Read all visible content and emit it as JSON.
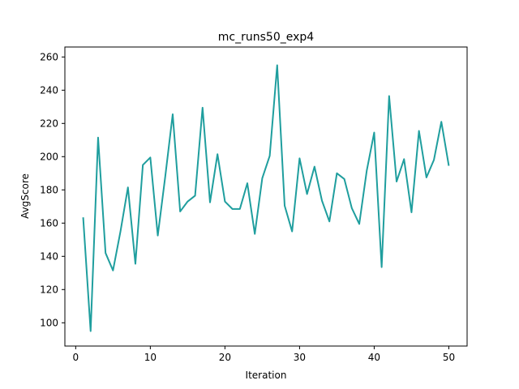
{
  "chart_data": {
    "type": "line",
    "title": "mc_runs50_exp4",
    "xlabel": "Iteration",
    "ylabel": "AvgScore",
    "xlim": [
      -1.45,
      52.45
    ],
    "ylim": [
      86,
      266
    ],
    "x_ticks": [
      0,
      10,
      20,
      30,
      40,
      50
    ],
    "y_ticks": [
      100,
      120,
      140,
      160,
      180,
      200,
      220,
      240,
      260
    ],
    "grid": false,
    "legend": "none",
    "series": [
      {
        "color": "#1f9e9e",
        "x": [
          1,
          2,
          3,
          4,
          5,
          6,
          7,
          8,
          9,
          10,
          11,
          12,
          13,
          14,
          15,
          16,
          17,
          18,
          19,
          20,
          21,
          22,
          23,
          24,
          25,
          26,
          27,
          28,
          29,
          30,
          31,
          32,
          33,
          34,
          35,
          36,
          37,
          38,
          39,
          40,
          41,
          42,
          43,
          44,
          45,
          46,
          47,
          48,
          49,
          50
        ],
        "values": [
          163.5,
          95,
          211.5,
          142,
          131.5,
          155,
          181.5,
          135.5,
          195,
          199.5,
          152.5,
          188,
          225.5,
          167,
          173,
          176.5,
          229.5,
          172.5,
          201.5,
          173,
          168.5,
          168.5,
          184,
          153.5,
          187,
          200.5,
          255,
          170.5,
          155,
          199,
          177.5,
          194,
          173.5,
          161,
          190,
          186.5,
          169,
          159.5,
          191.5,
          214.5,
          133.5,
          236.5,
          185,
          198.5,
          166.5,
          215.5,
          187.5,
          198,
          221,
          194.5
        ]
      }
    ]
  }
}
